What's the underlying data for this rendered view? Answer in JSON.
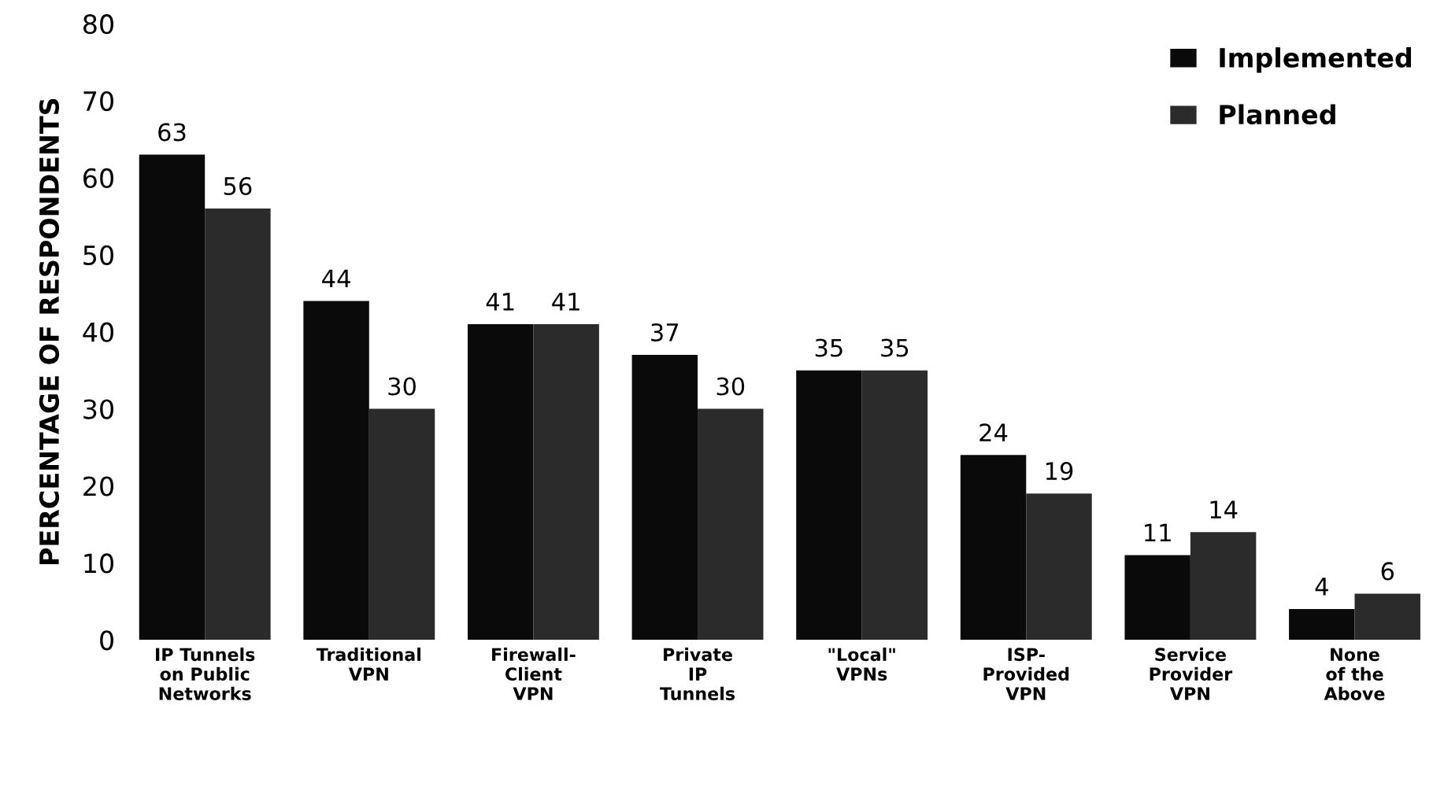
{
  "chart_data": {
    "type": "bar",
    "ylabel": "PERCENTAGE OF RESPONDENTS",
    "categories": [
      "IP Tunnels\non Public\nNetworks",
      "Traditional\nVPN",
      "Firewall-\nClient\nVPN",
      "Private\nIP\nTunnels",
      "\"Local\"\nVPNs",
      "ISP-\nProvided\nVPN",
      "Service\nProvider\nVPN",
      "None\nof the\nAbove"
    ],
    "series": [
      {
        "name": "Implemented",
        "color": "#0a0a0a",
        "values": [
          63,
          44,
          41,
          37,
          35,
          24,
          11,
          4
        ]
      },
      {
        "name": "Planned",
        "color": "#2b2b2b",
        "values": [
          56,
          30,
          41,
          30,
          35,
          19,
          14,
          6
        ]
      }
    ],
    "ylim": [
      0,
      80
    ],
    "yticks": [
      0,
      10,
      20,
      30,
      40,
      50,
      60,
      70,
      80
    ],
    "data_labels": true,
    "grid": false,
    "legend": "top right"
  }
}
